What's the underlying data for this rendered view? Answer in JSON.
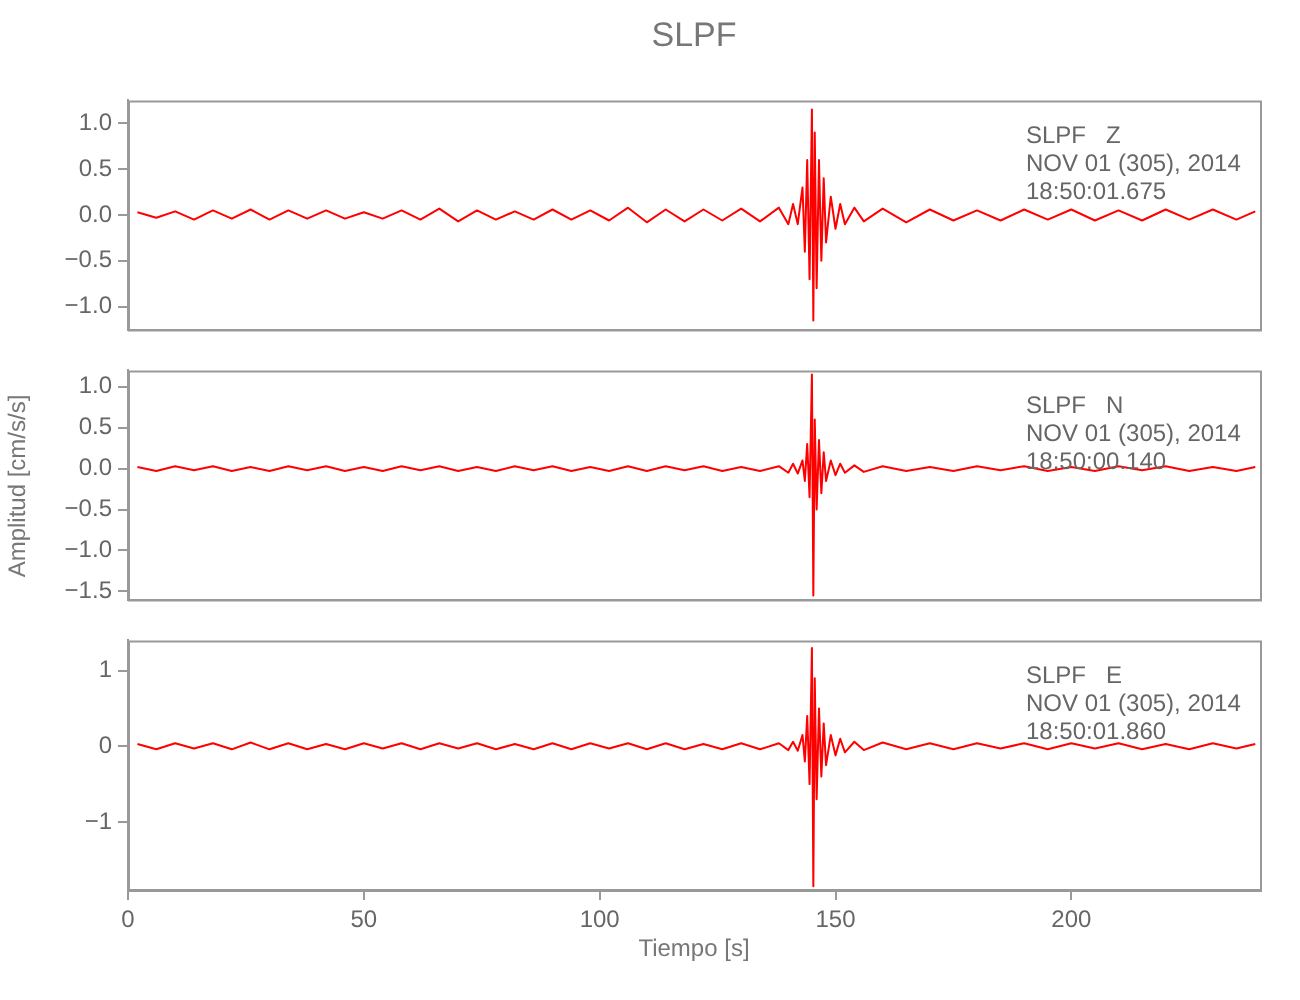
{
  "chart_data": [
    {
      "type": "line",
      "title": "SLPF",
      "color": "#ff0000",
      "xlim": [
        0,
        240
      ],
      "xticks": [
        0,
        50,
        100,
        150,
        200
      ],
      "ylim": [
        -1.25,
        1.25
      ],
      "yticks": [
        {
          "value": -1,
          "label": "−1.0"
        },
        {
          "value": -0.5,
          "label": "−0.5"
        },
        {
          "value": 0,
          "label": "0.0"
        },
        {
          "value": 0.5,
          "label": "0.5"
        },
        {
          "value": 1,
          "label": "1.0"
        }
      ],
      "tick_labels": "y",
      "annotations": [
        "SLPF   Z",
        "NOV 01 (305), 2014",
        "18:50:01.675"
      ],
      "x": [
        2,
        6,
        10,
        14,
        18,
        22,
        26,
        30,
        34,
        38,
        42,
        46,
        50,
        54,
        58,
        62,
        66,
        70,
        74,
        78,
        82,
        86,
        90,
        94,
        98,
        102,
        106,
        110,
        114,
        118,
        122,
        126,
        130,
        134,
        138,
        140,
        141,
        142,
        143,
        143.5,
        144,
        144.5,
        145,
        145.3,
        145.6,
        146,
        146.5,
        147,
        147.5,
        148,
        149,
        150,
        151,
        152,
        154,
        156,
        160,
        165,
        170,
        175,
        180,
        185,
        190,
        195,
        200,
        205,
        210,
        215,
        220,
        225,
        230,
        235,
        239
      ],
      "values": [
        0.03,
        -0.03,
        0.04,
        -0.05,
        0.05,
        -0.04,
        0.06,
        -0.05,
        0.05,
        -0.04,
        0.05,
        -0.04,
        0.03,
        -0.04,
        0.05,
        -0.05,
        0.07,
        -0.07,
        0.05,
        -0.05,
        0.04,
        -0.05,
        0.06,
        -0.05,
        0.05,
        -0.06,
        0.08,
        -0.08,
        0.06,
        -0.07,
        0.06,
        -0.06,
        0.07,
        -0.07,
        0.08,
        -0.1,
        0.12,
        -0.1,
        0.3,
        -0.4,
        0.6,
        -0.7,
        1.15,
        -1.15,
        0.9,
        -0.8,
        0.6,
        -0.5,
        0.4,
        -0.3,
        0.2,
        -0.15,
        0.12,
        -0.1,
        0.08,
        -0.07,
        0.07,
        -0.08,
        0.06,
        -0.06,
        0.05,
        -0.06,
        0.06,
        -0.05,
        0.06,
        -0.06,
        0.05,
        -0.06,
        0.06,
        -0.05,
        0.06,
        -0.05,
        0.04
      ]
    },
    {
      "type": "line",
      "ylabel": "Amplitud [cm/s/s]",
      "color": "#ff0000",
      "xlim": [
        0,
        240
      ],
      "xticks": [
        0,
        50,
        100,
        150,
        200
      ],
      "ylim": [
        -1.6,
        1.2
      ],
      "yticks": [
        {
          "value": -1.5,
          "label": "−1.5"
        },
        {
          "value": -1,
          "label": "−1.0"
        },
        {
          "value": -0.5,
          "label": "−0.5"
        },
        {
          "value": 0,
          "label": "0.0"
        },
        {
          "value": 0.5,
          "label": "0.5"
        },
        {
          "value": 1,
          "label": "1.0"
        }
      ],
      "tick_labels": "y",
      "annotations": [
        "SLPF   N",
        "NOV 01 (305), 2014",
        "18:50:00.140"
      ],
      "x": [
        2,
        6,
        10,
        14,
        18,
        22,
        26,
        30,
        34,
        38,
        42,
        46,
        50,
        54,
        58,
        62,
        66,
        70,
        74,
        78,
        82,
        86,
        90,
        94,
        98,
        102,
        106,
        110,
        114,
        118,
        122,
        126,
        130,
        134,
        138,
        140,
        141,
        142,
        143,
        143.5,
        144,
        144.5,
        145,
        145.3,
        145.6,
        146,
        146.5,
        147,
        147.5,
        148,
        149,
        150,
        151,
        152,
        154,
        156,
        160,
        165,
        170,
        175,
        180,
        185,
        190,
        195,
        200,
        205,
        210,
        215,
        220,
        225,
        230,
        235,
        239
      ],
      "values": [
        0.02,
        -0.03,
        0.03,
        -0.02,
        0.03,
        -0.03,
        0.02,
        -0.03,
        0.03,
        -0.02,
        0.03,
        -0.03,
        0.02,
        -0.03,
        0.03,
        -0.02,
        0.03,
        -0.03,
        0.02,
        -0.03,
        0.03,
        -0.02,
        0.03,
        -0.03,
        0.02,
        -0.03,
        0.03,
        -0.03,
        0.03,
        -0.02,
        0.03,
        -0.03,
        0.02,
        -0.03,
        0.03,
        -0.05,
        0.06,
        -0.06,
        0.1,
        -0.15,
        0.3,
        -0.35,
        1.15,
        -1.55,
        0.6,
        -0.5,
        0.35,
        -0.3,
        0.2,
        -0.15,
        0.1,
        -0.08,
        0.06,
        -0.05,
        0.04,
        -0.04,
        0.03,
        -0.03,
        0.02,
        -0.03,
        0.03,
        -0.02,
        0.03,
        -0.03,
        0.02,
        -0.03,
        0.03,
        -0.02,
        0.03,
        -0.03,
        0.02,
        -0.03,
        0.02
      ]
    },
    {
      "type": "line",
      "xlabel": "Tiempo [s]",
      "color": "#ff0000",
      "xlim": [
        0,
        240
      ],
      "xticks": [
        0,
        50,
        100,
        150,
        200
      ],
      "ylim": [
        -1.9,
        1.4
      ],
      "yticks": [
        {
          "value": -1,
          "label": "−1"
        },
        0,
        1
      ],
      "annotations": [
        "SLPF   E",
        "NOV 01 (305), 2014",
        "18:50:01.860"
      ],
      "x": [
        2,
        6,
        10,
        14,
        18,
        22,
        26,
        30,
        34,
        38,
        42,
        46,
        50,
        54,
        58,
        62,
        66,
        70,
        74,
        78,
        82,
        86,
        90,
        94,
        98,
        102,
        106,
        110,
        114,
        118,
        122,
        126,
        130,
        134,
        138,
        140,
        141,
        142,
        143,
        143.5,
        144,
        144.5,
        145,
        145.3,
        145.6,
        146,
        146.5,
        147,
        147.5,
        148,
        149,
        150,
        151,
        152,
        154,
        156,
        160,
        165,
        170,
        175,
        180,
        185,
        190,
        195,
        200,
        205,
        210,
        215,
        220,
        225,
        230,
        235,
        239
      ],
      "values": [
        0.03,
        -0.04,
        0.04,
        -0.03,
        0.04,
        -0.04,
        0.05,
        -0.04,
        0.04,
        -0.04,
        0.03,
        -0.04,
        0.04,
        -0.03,
        0.04,
        -0.04,
        0.04,
        -0.03,
        0.04,
        -0.04,
        0.03,
        -0.04,
        0.04,
        -0.04,
        0.04,
        -0.03,
        0.04,
        -0.04,
        0.04,
        -0.04,
        0.03,
        -0.04,
        0.04,
        -0.04,
        0.04,
        -0.05,
        0.06,
        -0.06,
        0.15,
        -0.2,
        0.4,
        -0.5,
        1.3,
        -1.85,
        0.9,
        -0.7,
        0.5,
        -0.4,
        0.3,
        -0.25,
        0.15,
        -0.12,
        0.1,
        -0.08,
        0.06,
        -0.05,
        0.05,
        -0.04,
        0.04,
        -0.04,
        0.04,
        -0.03,
        0.04,
        -0.04,
        0.04,
        -0.03,
        0.04,
        -0.04,
        0.03,
        -0.04,
        0.04,
        -0.03,
        0.03
      ]
    }
  ]
}
